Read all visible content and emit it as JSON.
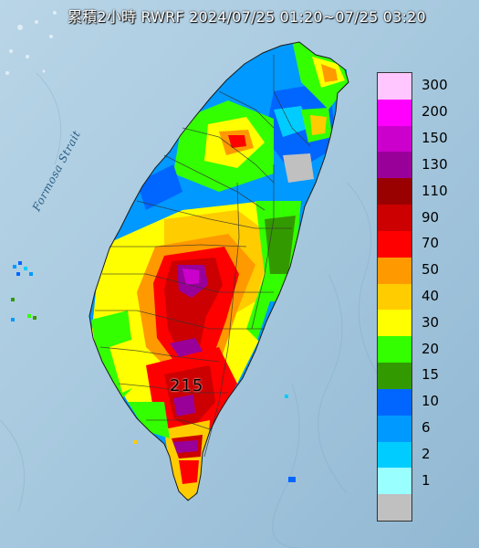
{
  "title": "累積2小時 RWRF 2024/07/25 01:20~07/25 03:20",
  "strait_label": "Formosa Strait",
  "max_label": "215",
  "legend": {
    "entries": [
      {
        "label": "300",
        "color": "#ffc6ff"
      },
      {
        "label": "200",
        "color": "#ff00ff"
      },
      {
        "label": "150",
        "color": "#cc00cc"
      },
      {
        "label": "130",
        "color": "#990099"
      },
      {
        "label": "110",
        "color": "#990000"
      },
      {
        "label": "90",
        "color": "#cc0000"
      },
      {
        "label": "70",
        "color": "#ff0000"
      },
      {
        "label": "50",
        "color": "#ff9900"
      },
      {
        "label": "40",
        "color": "#ffcc00"
      },
      {
        "label": "30",
        "color": "#ffff00"
      },
      {
        "label": "20",
        "color": "#33ff00"
      },
      {
        "label": "15",
        "color": "#339900"
      },
      {
        "label": "10",
        "color": "#0066ff"
      },
      {
        "label": "6",
        "color": "#0099ff"
      },
      {
        "label": "2",
        "color": "#00ccff"
      },
      {
        "label": "1",
        "color": "#99ffff"
      },
      {
        "label": "",
        "color": "#c0c0c0"
      }
    ]
  },
  "colors": {
    "sea": "#9cc4dd",
    "sea_light": "#b8d6e8"
  }
}
